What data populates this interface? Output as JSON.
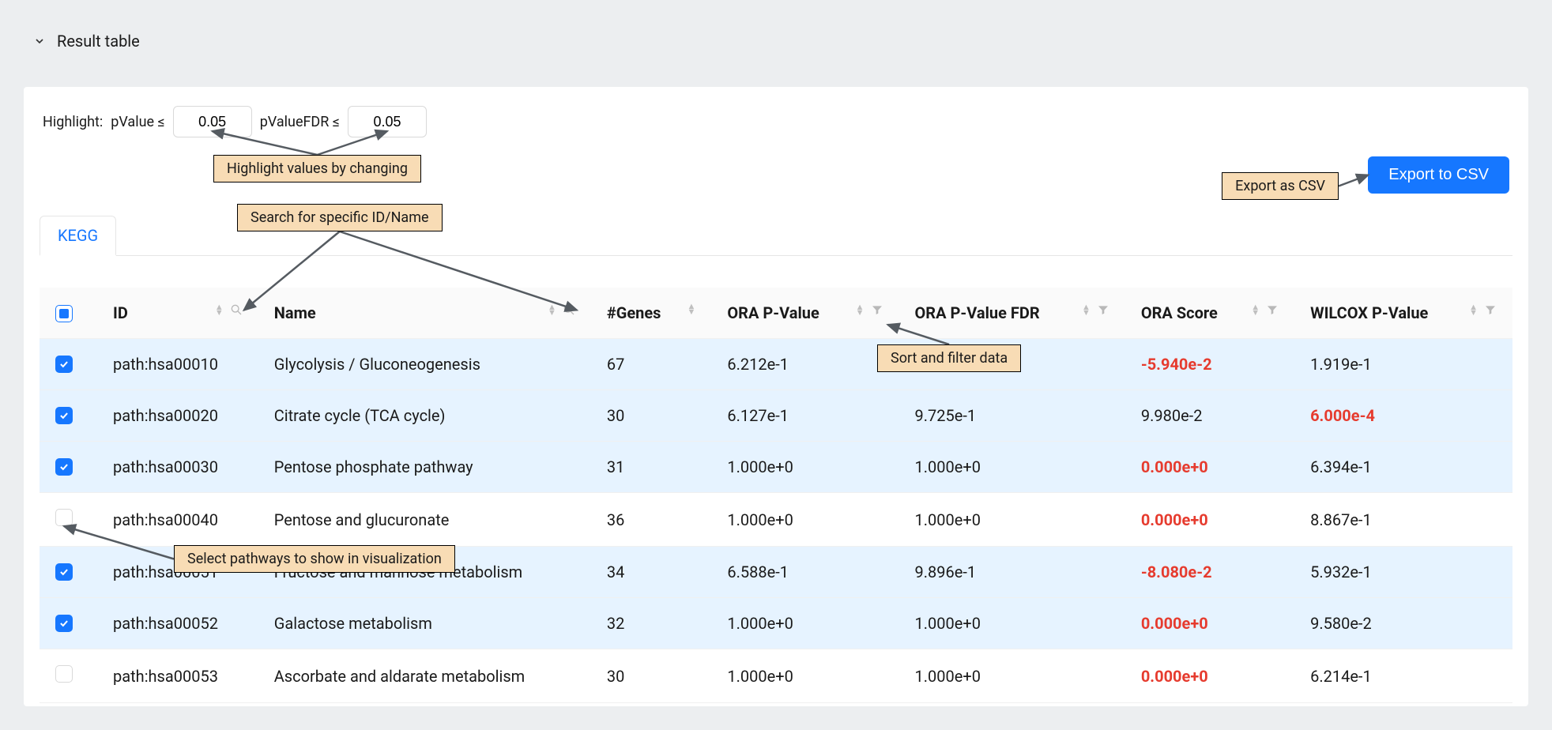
{
  "header": {
    "title": "Result table"
  },
  "highlight": {
    "label": "Highlight:",
    "pvalue_label": "pValue ≤",
    "pvalue": "0.05",
    "fdr_label": "pValueFDR ≤",
    "fdr": "0.05"
  },
  "export_button": "Export to CSV",
  "tabs": [
    {
      "label": "KEGG"
    }
  ],
  "columns": [
    {
      "key": "checkbox",
      "label": "",
      "search": false,
      "filter": false,
      "sort": false
    },
    {
      "key": "id",
      "label": "ID",
      "search": true,
      "filter": false,
      "sort": true
    },
    {
      "key": "name",
      "label": "Name",
      "search": true,
      "filter": false,
      "sort": true
    },
    {
      "key": "genes",
      "label": "#Genes",
      "search": false,
      "filter": false,
      "sort": true
    },
    {
      "key": "ora_p",
      "label": "ORA P-Value",
      "search": false,
      "filter": true,
      "sort": true
    },
    {
      "key": "ora_fdr",
      "label": "ORA P-Value FDR",
      "search": false,
      "filter": true,
      "sort": true
    },
    {
      "key": "ora_score",
      "label": "ORA Score",
      "search": false,
      "filter": true,
      "sort": true
    },
    {
      "key": "wilcox",
      "label": "WILCOX P-Value",
      "search": false,
      "filter": true,
      "sort": true
    }
  ],
  "header_checkbox_state": "indeterminate",
  "rows": [
    {
      "selected": true,
      "id": "path:hsa00010",
      "name": "Glycolysis / Gluconeogenesis",
      "genes": 67,
      "ora_p": "6.212e-1",
      "ora_fdr": "",
      "ora_score": "-5.940e-2",
      "ora_score_hl": true,
      "wilcox": "1.919e-1",
      "wilcox_hl": false
    },
    {
      "selected": true,
      "id": "path:hsa00020",
      "name": "Citrate cycle (TCA cycle)",
      "genes": 30,
      "ora_p": "6.127e-1",
      "ora_fdr": "9.725e-1",
      "ora_score": "9.980e-2",
      "ora_score_hl": false,
      "wilcox": "6.000e-4",
      "wilcox_hl": true
    },
    {
      "selected": true,
      "id": "path:hsa00030",
      "name": "Pentose phosphate pathway",
      "genes": 31,
      "ora_p": "1.000e+0",
      "ora_fdr": "1.000e+0",
      "ora_score": "0.000e+0",
      "ora_score_hl": true,
      "wilcox": "6.394e-1",
      "wilcox_hl": false
    },
    {
      "selected": false,
      "id": "path:hsa00040",
      "name": "Pentose and glucuronate",
      "genes": 36,
      "ora_p": "1.000e+0",
      "ora_fdr": "1.000e+0",
      "ora_score": "0.000e+0",
      "ora_score_hl": true,
      "wilcox": "8.867e-1",
      "wilcox_hl": false
    },
    {
      "selected": true,
      "id": "path:hsa00051",
      "name": "Fructose and mannose metabolism",
      "genes": 34,
      "ora_p": "6.588e-1",
      "ora_fdr": "9.896e-1",
      "ora_score": "-8.080e-2",
      "ora_score_hl": true,
      "wilcox": "5.932e-1",
      "wilcox_hl": false
    },
    {
      "selected": true,
      "id": "path:hsa00052",
      "name": "Galactose metabolism",
      "genes": 32,
      "ora_p": "1.000e+0",
      "ora_fdr": "1.000e+0",
      "ora_score": "0.000e+0",
      "ora_score_hl": true,
      "wilcox": "9.580e-2",
      "wilcox_hl": false
    },
    {
      "selected": false,
      "id": "path:hsa00053",
      "name": "Ascorbate and aldarate metabolism",
      "genes": 30,
      "ora_p": "1.000e+0",
      "ora_fdr": "1.000e+0",
      "ora_score": "0.000e+0",
      "ora_score_hl": true,
      "wilcox": "6.214e-1",
      "wilcox_hl": false
    }
  ],
  "annotations": {
    "highlight": "Highlight values by changing",
    "search": "Search for specific ID/Name",
    "sortfilter": "Sort and filter data",
    "export": "Export as CSV",
    "select": "Select pathways to show in visualization"
  },
  "colors": {
    "accent": "#1677ff",
    "highlight_text": "#e63b2e",
    "annotation_bg": "#f8dcb5",
    "page_bg": "#eceef0",
    "row_selected_bg": "#e6f3ff"
  }
}
